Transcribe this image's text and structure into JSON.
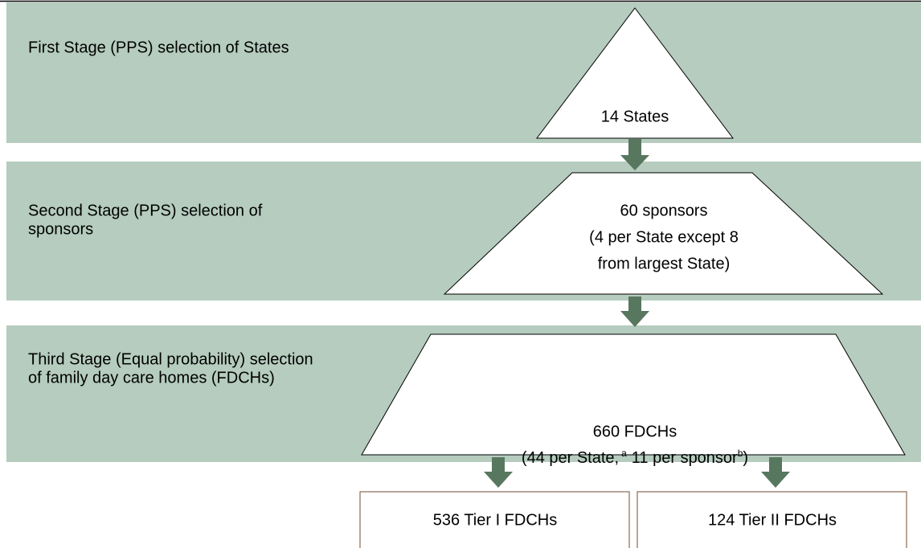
{
  "stages": [
    {
      "label": [
        "First Stage (PPS) selection of States"
      ],
      "shape_text": [
        "14 States"
      ]
    },
    {
      "label": [
        "Second Stage (PPS) selection of",
        "sponsors"
      ],
      "shape_text": [
        "60 sponsors",
        "(4 per State except 8",
        "from largest State)"
      ]
    },
    {
      "label": [
        "Third Stage (Equal probability) selection",
        "of family day care homes (FDCHs)"
      ],
      "shape_text": [
        "660 FDCHs"
      ],
      "shape_note": {
        "before": "(44 per State,",
        "sup_a": "a",
        "middle": "11 per sponsor",
        "sup_b": "b",
        "after": ")"
      }
    }
  ],
  "tiers": [
    "536 Tier I FDCHs",
    "124 Tier II FDCHs"
  ]
}
